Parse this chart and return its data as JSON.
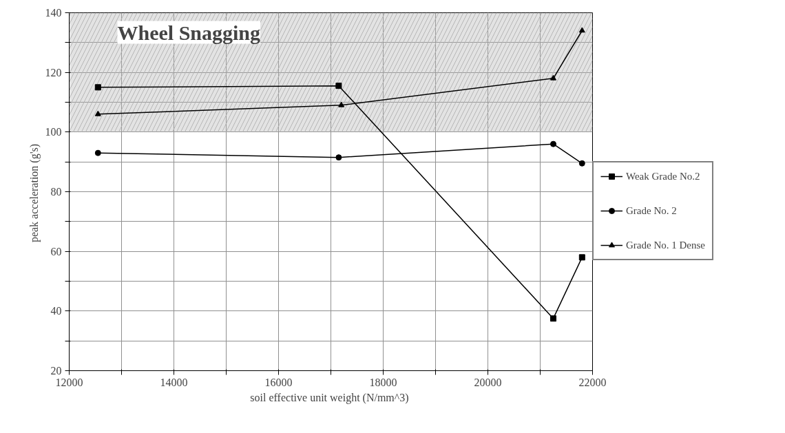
{
  "chart_data": {
    "type": "line",
    "xlabel": "soil effective unit weight  (N/mm^3)",
    "ylabel": "peak acceleration  (g's)",
    "xlim": [
      12000,
      22000
    ],
    "ylim": [
      20,
      140
    ],
    "xticks": [
      12000,
      {
        "value": 13000,
        "label": null
      },
      14000,
      {
        "value": 15000,
        "label": null
      },
      16000,
      {
        "value": 17000,
        "label": null
      },
      18000,
      {
        "value": 19000,
        "label": null
      },
      20000,
      {
        "value": 21000,
        "label": null
      },
      22000
    ],
    "yticks": [
      20,
      {
        "value": 30,
        "label": null
      },
      40,
      {
        "value": 50,
        "label": null
      },
      60,
      {
        "value": 70,
        "label": null
      },
      80,
      {
        "value": 90,
        "label": null
      },
      100,
      {
        "value": 110,
        "label": null
      },
      120,
      {
        "value": 130,
        "label": null
      },
      140
    ],
    "grid": true,
    "legend": "right",
    "series": [
      {
        "name": "Weak Grade No.2",
        "color": "#000000",
        "marker": "square",
        "x": [
          12550,
          17150,
          21250,
          21800
        ],
        "values": [
          115,
          115.5,
          37.5,
          58
        ]
      },
      {
        "name": "Grade No. 2",
        "color": "#000000",
        "marker": "circle",
        "x": [
          12550,
          17150,
          21250,
          21800
        ],
        "values": [
          93,
          91.5,
          96,
          89.5
        ]
      },
      {
        "name": "Grade No. 1 Dense",
        "color": "#000000",
        "marker": "triangle",
        "x": [
          12550,
          17200,
          21250,
          21800
        ],
        "values": [
          106,
          109,
          118,
          134
        ]
      }
    ],
    "bands": [
      {
        "axis": "y",
        "from": 100,
        "to": 140,
        "label": "Wheel Snagging",
        "color": "#b0b0b0"
      }
    ]
  }
}
